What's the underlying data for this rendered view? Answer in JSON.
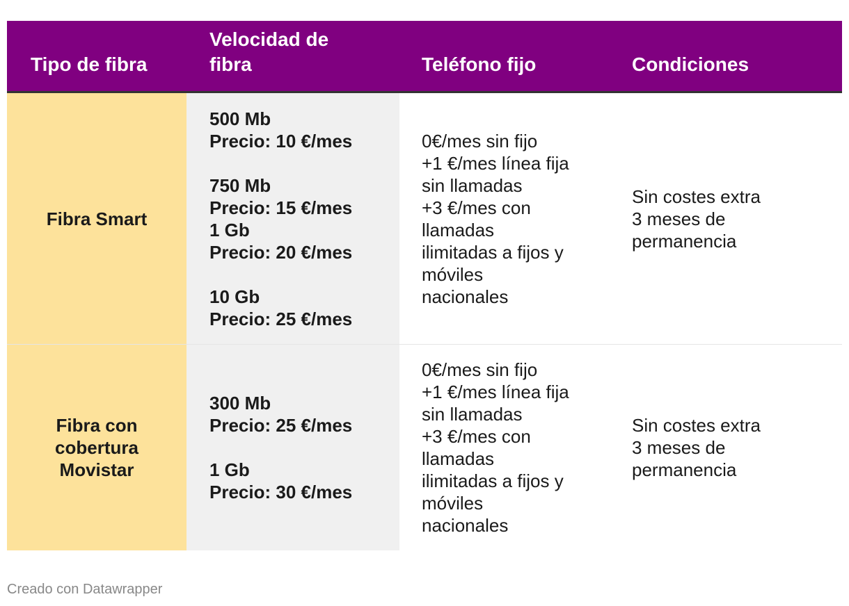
{
  "chart_data": {
    "type": "table",
    "columns": [
      "Tipo de fibra",
      "Velocidad de\nfibra",
      "Teléfono fijo",
      "Condiciones"
    ],
    "rows": [
      {
        "tipo": "Fibra Smart",
        "velocidades": [
          {
            "speed": "500 Mb",
            "price": "Precio: 10 €/mes"
          },
          {
            "speed": "750 Mb",
            "price": "Precio: 15 €/mes"
          },
          {
            "speed": "1 Gb",
            "price": "Precio: 20 €/mes"
          },
          {
            "speed": "10 Gb",
            "price": "Precio: 25 €/mes"
          }
        ],
        "telefono": [
          "0€/mes sin fijo",
          "+1 €/mes línea fija\nsin llamadas",
          "+3 €/mes con\nllamadas\nilimitadas a fijos y\nmóviles\nnacionales"
        ],
        "condiciones": [
          "Sin costes extra",
          "3 meses de\npermanencia"
        ]
      },
      {
        "tipo": "Fibra con\ncobertura\nMovistar",
        "velocidades": [
          {
            "speed": "300 Mb",
            "price": "Precio: 25 €/mes"
          },
          {
            "speed": "1 Gb",
            "price": "Precio: 30 €/mes"
          }
        ],
        "telefono": [
          "0€/mes sin fijo",
          "+1 €/mes línea fija\nsin llamadas",
          "+3 €/mes con\nllamadas\nilimitadas a fijos y\nmóviles\nnacionales"
        ],
        "condiciones": [
          "Sin costes extra",
          "3 meses de\npermanencia"
        ]
      }
    ]
  },
  "footer": "Creado con Datawrapper",
  "colors": {
    "header_bg": "#800080",
    "tipo_bg": "#fde29b",
    "velocidad_bg": "#f0f0f0"
  }
}
